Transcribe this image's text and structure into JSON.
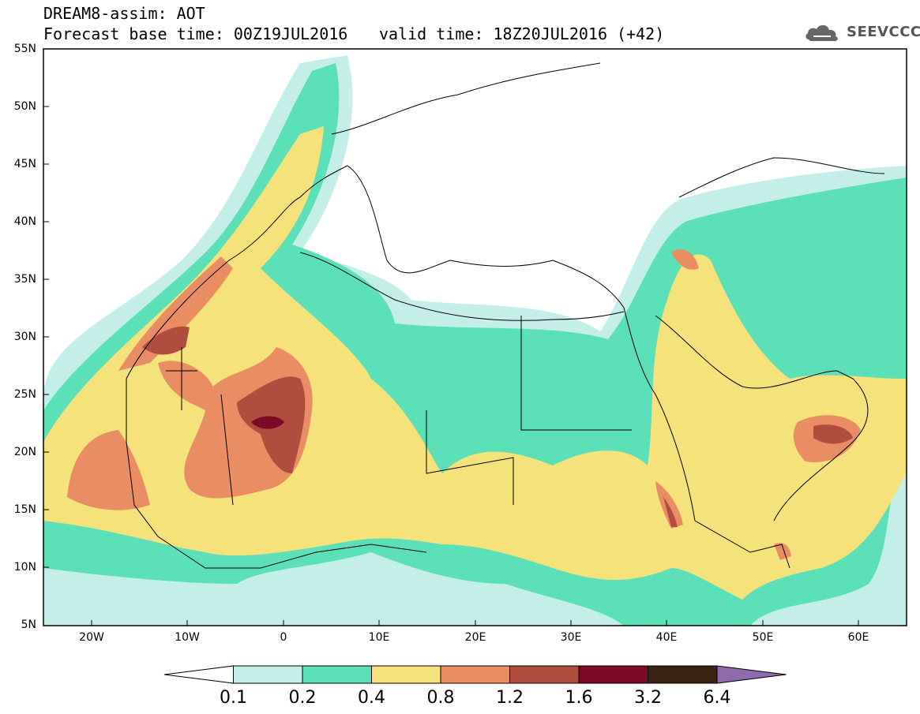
{
  "header": {
    "title": "DREAM8-assim: AOT",
    "base_time": "Forecast base time: 00Z19JUL2016",
    "valid_time": "valid time: 18Z20JUL2016 (+42)"
  },
  "logo": {
    "text": "SEEVCCC",
    "icon": "cloud-icon"
  },
  "map": {
    "variable": "AOT",
    "projection": "lat-lon",
    "lon_range": [
      -25,
      65
    ],
    "lat_range": [
      5,
      55
    ],
    "lat_ticks": [
      "55N",
      "50N",
      "45N",
      "40N",
      "35N",
      "30N",
      "25N",
      "20N",
      "15N",
      "10N",
      "5N"
    ],
    "lon_ticks": [
      "20W",
      "10W",
      "0",
      "10E",
      "20E",
      "30E",
      "40E",
      "50E",
      "60E"
    ]
  },
  "legend": {
    "thresholds": [
      "0.1",
      "0.2",
      "0.4",
      "0.8",
      "1.2",
      "1.6",
      "3.2",
      "6.4"
    ],
    "colors": [
      "#ffffff",
      "#c4efe8",
      "#5be0b7",
      "#f5e27a",
      "#e98d64",
      "#b14d3e",
      "#7d0a25",
      "#3b2314",
      "#8d6bad"
    ]
  }
}
